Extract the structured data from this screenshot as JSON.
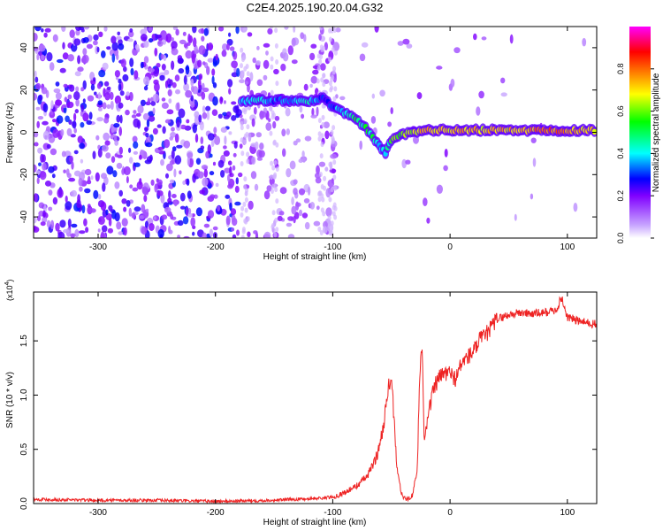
{
  "title": "C2E4.2025.190.20.04.G32",
  "chart_data": [
    {
      "type": "heatmap",
      "xlabel": "Height of straight line (km)",
      "ylabel": "Frequency (Hz)",
      "xlim": [
        -355,
        125
      ],
      "ylim": [
        -50,
        50
      ],
      "xticks": [
        -300,
        -200,
        -100,
        0,
        100
      ],
      "yticks": [
        -40,
        -20,
        0,
        20,
        40
      ],
      "colorbar": {
        "label": "Normalized spectral amplitude",
        "range": [
          0.0,
          1.0
        ],
        "ticks": [
          "0.0",
          "0.2",
          "0.4",
          "0.6",
          "0.8"
        ],
        "colors": [
          "#ffffff",
          "#c8a6ff",
          "#8000ff",
          "#0000ff",
          "#00ffff",
          "#00ff00",
          "#ffff00",
          "#ff8000",
          "#ff0000",
          "#ff00ff"
        ]
      },
      "ridge": [
        {
          "x": -178,
          "y": 15,
          "amp": 0.35
        },
        {
          "x": -168,
          "y": 15,
          "amp": 0.4
        },
        {
          "x": -150,
          "y": 15,
          "amp": 0.33
        },
        {
          "x": -135,
          "y": 15,
          "amp": 0.35
        },
        {
          "x": -120,
          "y": 15,
          "amp": 0.4
        },
        {
          "x": -108,
          "y": 16,
          "amp": 0.3
        },
        {
          "x": -100,
          "y": 12,
          "amp": 0.3
        },
        {
          "x": -90,
          "y": 9,
          "amp": 0.45
        },
        {
          "x": -80,
          "y": 6,
          "amp": 0.5
        },
        {
          "x": -70,
          "y": 1,
          "amp": 0.5
        },
        {
          "x": -62,
          "y": -5,
          "amp": 0.45
        },
        {
          "x": -55,
          "y": -10,
          "amp": 0.35
        },
        {
          "x": -50,
          "y": -4,
          "amp": 0.55
        },
        {
          "x": -42,
          "y": -1,
          "amp": 0.6
        },
        {
          "x": -30,
          "y": 0,
          "amp": 0.65
        },
        {
          "x": -20,
          "y": 1,
          "amp": 0.75
        },
        {
          "x": -10,
          "y": 1,
          "amp": 0.7
        },
        {
          "x": 0,
          "y": 1,
          "amp": 0.7
        },
        {
          "x": 10,
          "y": 1,
          "amp": 0.75
        },
        {
          "x": 20,
          "y": 1,
          "amp": 0.7
        },
        {
          "x": 40,
          "y": 1,
          "amp": 0.7
        },
        {
          "x": 60,
          "y": 1,
          "amp": 0.7
        },
        {
          "x": 80,
          "y": 1,
          "amp": 0.8
        },
        {
          "x": 100,
          "y": 1,
          "amp": 0.75
        },
        {
          "x": 125,
          "y": 1,
          "amp": 0.7
        }
      ]
    },
    {
      "type": "line",
      "xlabel": "Height of straight line (km)",
      "ylabel": "SNR (10 * v/v)",
      "y_multiplier": "(x10^4)",
      "xlim": [
        -355,
        125
      ],
      "ylim": [
        0.0,
        1.95
      ],
      "xticks": [
        -300,
        -200,
        -100,
        0,
        100
      ],
      "yticks": [
        0.0,
        0.5,
        1.0,
        1.5
      ],
      "series": [
        {
          "color": "#ee2222",
          "x": [
            -355,
            -300,
            -250,
            -200,
            -150,
            -130,
            -110,
            -100,
            -90,
            -80,
            -70,
            -62,
            -58,
            -55,
            -52,
            -50,
            -48,
            -45,
            -42,
            -40,
            -36,
            -32,
            -28,
            -26,
            -24,
            -22,
            -20,
            -17,
            -14,
            -10,
            -5,
            0,
            5,
            10,
            15,
            20,
            25,
            30,
            35,
            40,
            50,
            60,
            70,
            80,
            90,
            95,
            100,
            110,
            125
          ],
          "y": [
            0.04,
            0.03,
            0.03,
            0.02,
            0.03,
            0.04,
            0.05,
            0.06,
            0.1,
            0.16,
            0.26,
            0.45,
            0.65,
            0.85,
            1.1,
            1.18,
            0.8,
            0.3,
            0.12,
            0.05,
            0.04,
            0.08,
            0.3,
            1.15,
            1.48,
            0.6,
            0.75,
            0.9,
            1.05,
            1.15,
            1.2,
            1.2,
            1.15,
            1.3,
            1.35,
            1.4,
            1.5,
            1.55,
            1.62,
            1.7,
            1.74,
            1.76,
            1.75,
            1.76,
            1.78,
            1.9,
            1.72,
            1.68,
            1.65
          ]
        }
      ]
    }
  ]
}
